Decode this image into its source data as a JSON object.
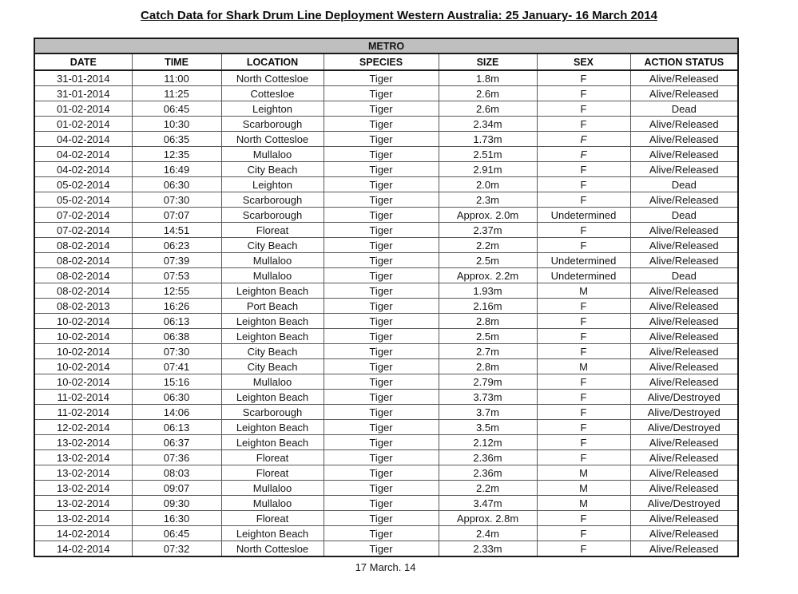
{
  "page": {
    "title": "Catch Data for Shark Drum Line Deployment Western Australia: 25 January- 16 March 2014",
    "footer_date": "17 March. 14"
  },
  "table": {
    "region_label": "METRO",
    "columns": [
      "DATE",
      "TIME",
      "LOCATION",
      "SPECIES",
      "SIZE",
      "SEX",
      "ACTION STATUS"
    ],
    "rows": [
      [
        "31-01-2014",
        "11:00",
        "North Cottesloe",
        "Tiger",
        "1.8m",
        "F",
        "Alive/Released"
      ],
      [
        "31-01-2014",
        "11:25",
        "Cottesloe",
        "Tiger",
        "2.6m",
        "F",
        "Alive/Released"
      ],
      [
        "01-02-2014",
        "06:45",
        "Leighton",
        "Tiger",
        "2.6m",
        "F",
        "Dead"
      ],
      [
        "01-02-2014",
        "10:30",
        "Scarborough",
        "Tiger",
        "2.34m",
        "F",
        "Alive/Released"
      ],
      [
        "04-02-2014",
        "06:35",
        "North Cottesloe",
        "Tiger",
        "1.73m",
        "F",
        "Alive/Released"
      ],
      [
        "04-02-2014",
        "12:35",
        "Mullaloo",
        "Tiger",
        "2.51m",
        "F",
        "Alive/Released"
      ],
      [
        "04-02-2014",
        "16:49",
        "City Beach",
        "Tiger",
        "2.91m",
        "F",
        "Alive/Released"
      ],
      [
        "05-02-2014",
        "06:30",
        "Leighton",
        "Tiger",
        "2.0m",
        "F",
        "Dead"
      ],
      [
        "05-02-2014",
        "07:30",
        "Scarborough",
        "Tiger",
        "2.3m",
        "F",
        "Alive/Released"
      ],
      [
        "07-02-2014",
        "07:07",
        "Scarborough",
        "Tiger",
        "Approx. 2.0m",
        "Undetermined",
        "Dead"
      ],
      [
        "07-02-2014",
        "14:51",
        "Floreat",
        "Tiger",
        "2.37m",
        "F",
        "Alive/Released"
      ],
      [
        "08-02-2014",
        "06:23",
        "City Beach",
        "Tiger",
        "2.2m",
        "F",
        "Alive/Released"
      ],
      [
        "08-02-2014",
        "07:39",
        "Mullaloo",
        "Tiger",
        "2.5m",
        "Undetermined",
        "Alive/Released"
      ],
      [
        "08-02-2014",
        "07:53",
        "Mullaloo",
        "Tiger",
        "Approx. 2.2m",
        "Undetermined",
        "Dead"
      ],
      [
        "08-02-2014",
        "12:55",
        "Leighton Beach",
        "Tiger",
        "1.93m",
        "M",
        "Alive/Released"
      ],
      [
        "08-02-2013",
        "16:26",
        "Port Beach",
        "Tiger",
        "2.16m",
        "F",
        "Alive/Released"
      ],
      [
        "10-02-2014",
        "06:13",
        "Leighton Beach",
        "Tiger",
        "2.8m",
        "F",
        "Alive/Released"
      ],
      [
        "10-02-2014",
        "06:38",
        "Leighton Beach",
        "Tiger",
        "2.5m",
        "F",
        "Alive/Released"
      ],
      [
        "10-02-2014",
        "07:30",
        "City Beach",
        "Tiger",
        "2.7m",
        "F",
        "Alive/Released"
      ],
      [
        "10-02-2014",
        "07:41",
        "City Beach",
        "Tiger",
        "2.8m",
        "M",
        "Alive/Released"
      ],
      [
        "10-02-2014",
        "15:16",
        "Mullaloo",
        "Tiger",
        "2.79m",
        "F",
        "Alive/Released"
      ],
      [
        "11-02-2014",
        "06:30",
        "Leighton Beach",
        "Tiger",
        "3.73m",
        "F",
        "Alive/Destroyed"
      ],
      [
        "11-02-2014",
        "14:06",
        "Scarborough",
        "Tiger",
        "3.7m",
        "F",
        "Alive/Destroyed"
      ],
      [
        "12-02-2014",
        "06:13",
        "Leighton Beach",
        "Tiger",
        "3.5m",
        "F",
        "Alive/Destroyed"
      ],
      [
        "13-02-2014",
        "06:37",
        "Leighton Beach",
        "Tiger",
        "2.12m",
        "F",
        "Alive/Released"
      ],
      [
        "13-02-2014",
        "07:36",
        "Floreat",
        "Tiger",
        "2.36m",
        "F",
        "Alive/Released"
      ],
      [
        "13-02-2014",
        "08:03",
        "Floreat",
        "Tiger",
        "2.36m",
        "M",
        "Alive/Released"
      ],
      [
        "13-02-2014",
        "09:07",
        "Mullaloo",
        "Tiger",
        "2.2m",
        "M",
        "Alive/Released"
      ],
      [
        "13-02-2014",
        "09:30",
        "Mullaloo",
        "Tiger",
        "3.47m",
        "M",
        "Alive/Destroyed"
      ],
      [
        "13-02-2014",
        "16:30",
        "Floreat",
        "Tiger",
        "Approx. 2.8m",
        "F",
        "Alive/Released"
      ],
      [
        "14-02-2014",
        "06:45",
        "Leighton Beach",
        "Tiger",
        "2.4m",
        "F",
        "Alive/Released"
      ],
      [
        "14-02-2014",
        "07:32",
        "North Cottesloe",
        "Tiger",
        "2.33m",
        "F",
        "Alive/Released"
      ]
    ],
    "italic_sex_row_indices": [
      4,
      5
    ],
    "colors": {
      "region_header_bg": "#bfbfbf",
      "grid_border": "#595959",
      "outer_border": "#1a1a1a",
      "text": "#111111"
    }
  }
}
